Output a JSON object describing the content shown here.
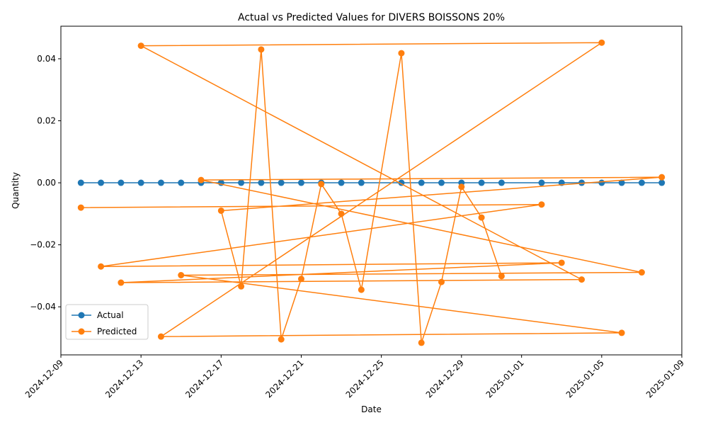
{
  "chart_data": {
    "type": "line",
    "title": "Actual vs Predicted Values for DIVERS BOISSONS 20%",
    "xlabel": "Date",
    "ylabel": "Quantity",
    "xlim": [
      "2024-12-09",
      "2025-01-09"
    ],
    "ylim": [
      -0.0555,
      0.0505
    ],
    "x_ticks": [
      "2024-12-09",
      "2024-12-13",
      "2024-12-17",
      "2024-12-21",
      "2024-12-25",
      "2024-12-29",
      "2025-01-01",
      "2025-01-05",
      "2025-01-09"
    ],
    "y_ticks": [
      -0.04,
      -0.02,
      0.0,
      0.02,
      0.04
    ],
    "y_tick_labels": [
      "−0.04",
      "−0.02",
      "0.00",
      "0.02",
      "0.04"
    ],
    "grid": false,
    "legend_position": "lower-left",
    "series": [
      {
        "name": "Actual",
        "color": "#1f77b4",
        "marker": "circle",
        "points": [
          [
            "2024-12-10",
            0
          ],
          [
            "2024-12-11",
            0
          ],
          [
            "2024-12-12",
            0
          ],
          [
            "2024-12-13",
            0
          ],
          [
            "2024-12-14",
            0
          ],
          [
            "2024-12-15",
            0
          ],
          [
            "2024-12-16",
            0
          ],
          [
            "2024-12-17",
            0
          ],
          [
            "2024-12-18",
            0
          ],
          [
            "2024-12-19",
            0
          ],
          [
            "2024-12-20",
            0
          ],
          [
            "2024-12-21",
            0
          ],
          [
            "2024-12-22",
            0
          ],
          [
            "2024-12-23",
            0
          ],
          [
            "2024-12-24",
            0
          ],
          [
            "2024-12-26",
            0
          ],
          [
            "2024-12-27",
            0
          ],
          [
            "2024-12-28",
            0
          ],
          [
            "2024-12-29",
            0
          ],
          [
            "2024-12-30",
            0
          ],
          [
            "2024-12-31",
            0
          ],
          [
            "2025-01-02",
            0
          ],
          [
            "2025-01-03",
            0
          ],
          [
            "2025-01-04",
            0
          ],
          [
            "2025-01-05",
            0
          ],
          [
            "2025-01-06",
            0
          ],
          [
            "2025-01-07",
            0
          ],
          [
            "2025-01-08",
            0
          ]
        ]
      },
      {
        "name": "Predicted",
        "color": "#ff7f0e",
        "marker": "circle",
        "points": [
          [
            "2024-12-10",
            -0.008
          ],
          [
            "2024-12-11",
            -0.027
          ],
          [
            "2024-12-12",
            -0.0322
          ],
          [
            "2024-12-13",
            0.0442
          ],
          [
            "2024-12-14",
            -0.0496
          ],
          [
            "2024-12-15",
            -0.0298
          ],
          [
            "2024-12-16",
            0.0009
          ],
          [
            "2024-12-17",
            -0.009
          ],
          [
            "2024-12-18",
            -0.0334
          ],
          [
            "2024-12-19",
            0.043
          ],
          [
            "2024-12-20",
            -0.0505
          ],
          [
            "2024-12-21",
            -0.031
          ],
          [
            "2024-12-22",
            -0.0004
          ],
          [
            "2024-12-23",
            -0.01
          ],
          [
            "2024-12-24",
            -0.0345
          ],
          [
            "2024-12-26",
            0.0418
          ],
          [
            "2024-12-27",
            -0.0516
          ],
          [
            "2024-12-28",
            -0.032
          ],
          [
            "2024-12-29",
            -0.0013
          ],
          [
            "2024-12-30",
            -0.0112
          ],
          [
            "2024-12-31",
            -0.0301
          ],
          [
            "2025-01-02",
            -0.007
          ],
          [
            "2025-01-03",
            -0.0258
          ],
          [
            "2025-01-04",
            -0.0312
          ],
          [
            "2025-01-05",
            0.0452
          ],
          [
            "2025-01-06",
            -0.0484
          ],
          [
            "2025-01-07",
            -0.0289
          ],
          [
            "2025-01-08",
            0.0018
          ]
        ],
        "line_order": [
          0,
          21,
          1,
          22,
          2,
          23,
          3,
          24,
          4,
          25,
          5,
          26,
          6,
          27,
          7,
          8,
          9,
          10,
          11,
          12,
          13,
          14,
          15,
          16,
          17,
          18,
          19,
          20
        ]
      }
    ]
  }
}
